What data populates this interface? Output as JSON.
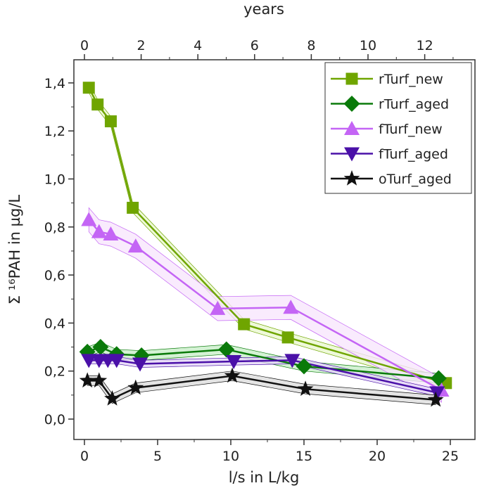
{
  "chart_data": {
    "type": "line",
    "xlabel": "l/s in L/kg",
    "ylabel": "Σ ¹⁶PAH in µg/L",
    "top_xlabel": "years",
    "xlim": [
      -1,
      26.5
    ],
    "ylim": [
      -0.08,
      1.5
    ],
    "top_xlim_years": [
      0,
      12.9
    ],
    "xticks": [
      {
        "v": 0,
        "t": "0"
      },
      {
        "v": 5,
        "t": "5"
      },
      {
        "v": 10,
        "t": "10"
      },
      {
        "v": 15,
        "t": "15"
      },
      {
        "v": 20,
        "t": "20"
      },
      {
        "v": 25,
        "t": "25"
      }
    ],
    "yticks": [
      {
        "v": 0,
        "t": "0,0"
      },
      {
        "v": 0.2,
        "t": "0,2"
      },
      {
        "v": 0.4,
        "t": "0,4"
      },
      {
        "v": 0.6,
        "t": "0,6"
      },
      {
        "v": 0.8,
        "t": "0,8"
      },
      {
        "v": 1.0,
        "t": "1,0"
      },
      {
        "v": 1.2,
        "t": "1,2"
      },
      {
        "v": 1.4,
        "t": "1,4"
      }
    ],
    "top_ticks": [
      {
        "v": 0,
        "t": "0"
      },
      {
        "v": 2,
        "t": "2"
      },
      {
        "v": 4,
        "t": "4"
      },
      {
        "v": 6,
        "t": "6"
      },
      {
        "v": 8,
        "t": "8"
      },
      {
        "v": 10,
        "t": "10"
      },
      {
        "v": 12,
        "t": "12"
      }
    ],
    "legend_position": "top-right",
    "series": [
      {
        "name": "rTurf_new",
        "color": "#6fa500",
        "fill": "#eaf7d0",
        "marker": "square",
        "x": [
          0.3,
          0.9,
          1.8,
          3.3,
          10.9,
          13.9,
          24.7
        ],
        "y": [
          1.38,
          1.31,
          1.24,
          0.88,
          0.395,
          0.34,
          0.15
        ],
        "band": 0.02
      },
      {
        "name": "rTurf_aged",
        "color": "#0a7a0a",
        "fill": "#c9efc9",
        "marker": "diamond",
        "x": [
          0.2,
          1.1,
          2.2,
          3.9,
          9.7,
          15.0,
          24.2
        ],
        "y": [
          0.28,
          0.3,
          0.27,
          0.265,
          0.29,
          0.22,
          0.17
        ],
        "band": 0.02
      },
      {
        "name": "fTurf_new",
        "color": "#c465f5",
        "fill": "#f8e6fd",
        "marker": "triangle-up",
        "x": [
          0.3,
          1.0,
          1.8,
          3.5,
          9.1,
          14.1,
          24.4
        ],
        "y": [
          0.83,
          0.78,
          0.77,
          0.72,
          0.46,
          0.465,
          0.12
        ],
        "band": 0.05
      },
      {
        "name": "fTurf_aged",
        "color": "#4a10a8",
        "fill": "#e3d6f6",
        "marker": "triangle-down",
        "x": [
          0.3,
          1.0,
          1.6,
          2.2,
          3.8,
          10.2,
          14.2,
          24.1
        ],
        "y": [
          0.245,
          0.245,
          0.245,
          0.245,
          0.23,
          0.24,
          0.245,
          0.11
        ],
        "band": 0.015
      },
      {
        "name": "oTurf_aged",
        "color": "#111111",
        "fill": "#dddddd",
        "marker": "star",
        "x": [
          0.2,
          1.0,
          1.9,
          3.5,
          10.1,
          15.1,
          24.0
        ],
        "y": [
          0.16,
          0.16,
          0.085,
          0.13,
          0.18,
          0.125,
          0.08
        ],
        "band": 0.02
      }
    ]
  }
}
